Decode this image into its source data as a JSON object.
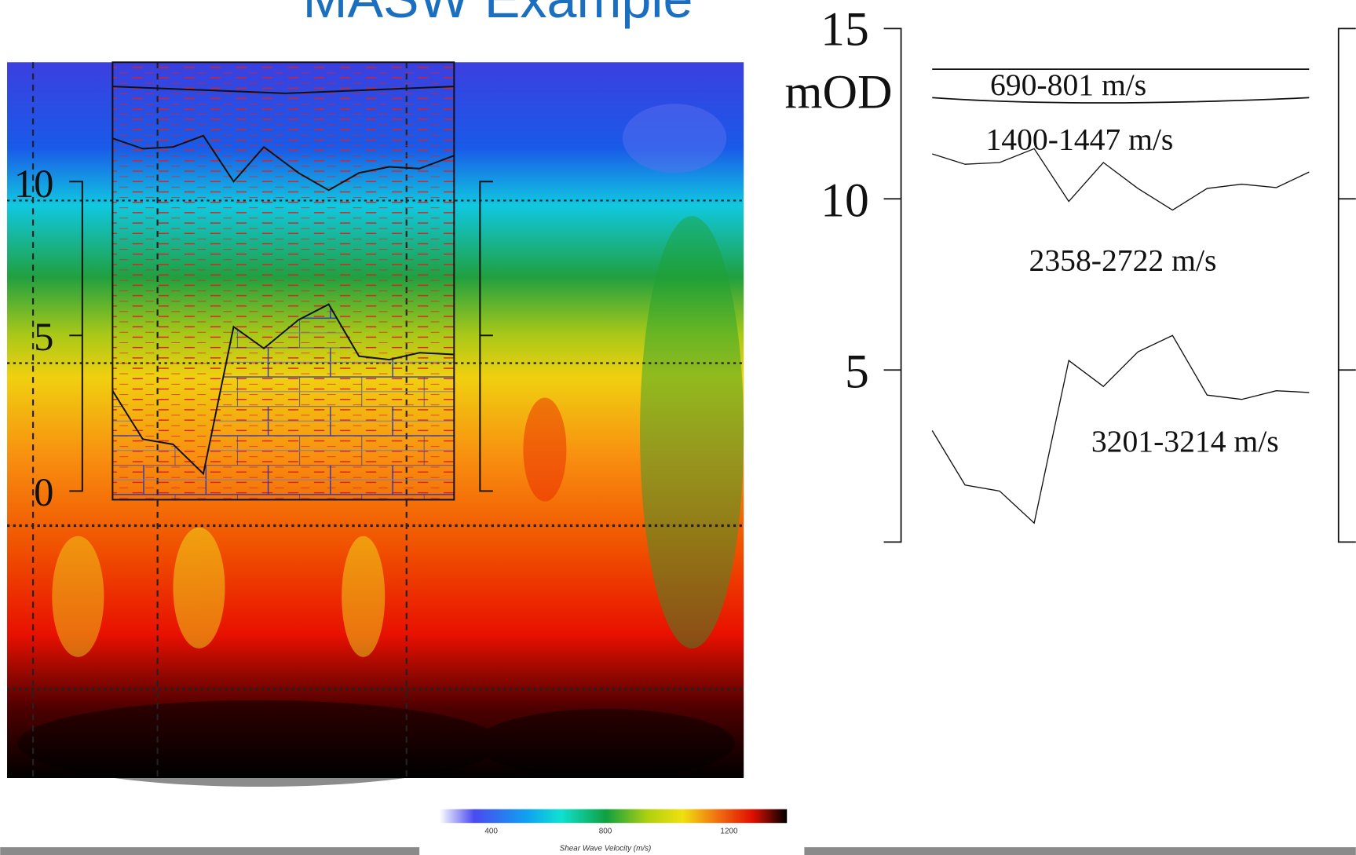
{
  "title": "MASW Example",
  "section": {
    "left_axis_ticks": [
      "10",
      "5",
      "0"
    ],
    "right_axis_unit": "mOD",
    "right_axis_ticks": [
      "15",
      "10",
      "5"
    ],
    "layers": [
      "690-801 m/s",
      "1400-1447 m/s",
      "2358-2722 m/s",
      "3201-3214 m/s"
    ]
  },
  "colorbar": {
    "ticks": [
      "400",
      "800",
      "1200"
    ],
    "label": "Shear Wave Velocity (m/s)"
  }
}
